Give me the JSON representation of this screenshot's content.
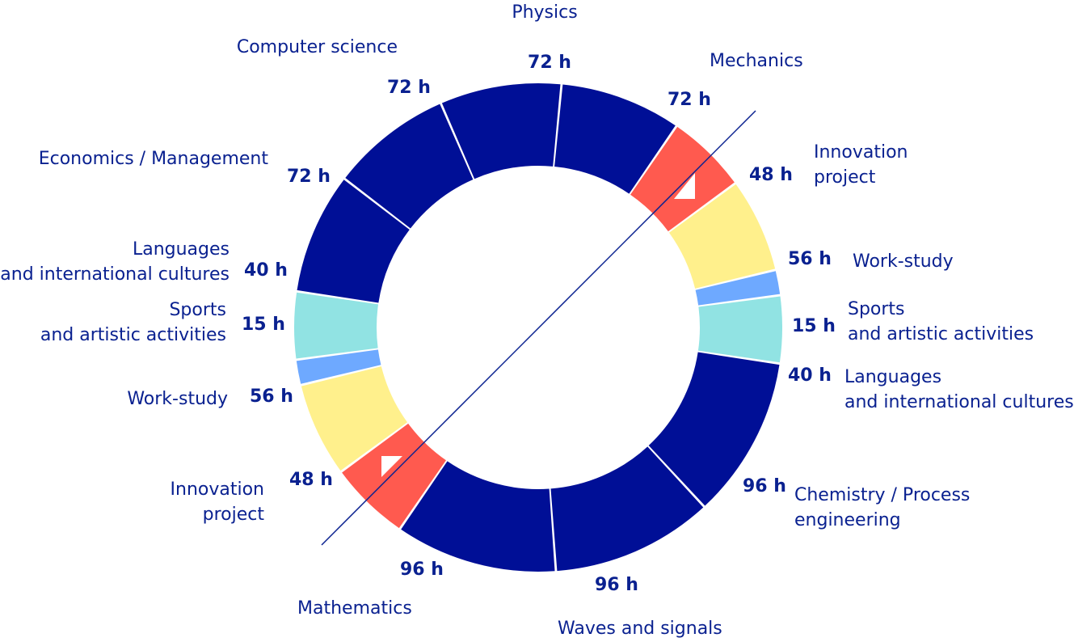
{
  "chart_data": {
    "type": "pie",
    "donut": true,
    "unit": "h",
    "segments": [
      {
        "label": "Physics",
        "hours": 72,
        "value_label": "72 h",
        "color": "#000f96"
      },
      {
        "label": "Mechanics",
        "hours": 72,
        "value_label": "72 h",
        "color": "#000f96"
      },
      {
        "label": "Innovation\nproject",
        "hours": 48,
        "value_label": "48 h",
        "color": "#ff5a4f"
      },
      {
        "label": "Work-study",
        "hours": 56,
        "value_label": "56 h",
        "color": "#fff08c"
      },
      {
        "label": "Sports\nand artistic activities",
        "hours": 15,
        "value_label": "15 h",
        "color": "#6ea9ff"
      },
      {
        "label": "Languages\nand international cultures",
        "hours": 40,
        "value_label": "40 h",
        "color": "#91e3e3"
      },
      {
        "label": "Chemistry / Process\nengineering",
        "hours": 96,
        "value_label": "96 h",
        "color": "#000f96"
      },
      {
        "label": "Waves and signals",
        "hours": 96,
        "value_label": "96 h",
        "color": "#000f96"
      },
      {
        "label": "Mathematics",
        "hours": 96,
        "value_label": "96 h",
        "color": "#000f96"
      },
      {
        "label": "Innovation\nproject",
        "hours": 48,
        "value_label": "48 h",
        "color": "#ff5a4f"
      },
      {
        "label": "Work-study",
        "hours": 56,
        "value_label": "56 h",
        "color": "#fff08c"
      },
      {
        "label": "Sports\nand artistic activities",
        "hours": 15,
        "value_label": "15 h",
        "color": "#6ea9ff"
      },
      {
        "label": "Languages\nand international cultures",
        "hours": 40,
        "value_label": "40 h",
        "color": "#91e3e3"
      },
      {
        "label": "Economics / Management",
        "hours": 72,
        "value_label": "72 h",
        "color": "#000f96"
      },
      {
        "label": "Computer science",
        "hours": 72,
        "value_label": "72 h",
        "color": "#000f96"
      }
    ]
  }
}
